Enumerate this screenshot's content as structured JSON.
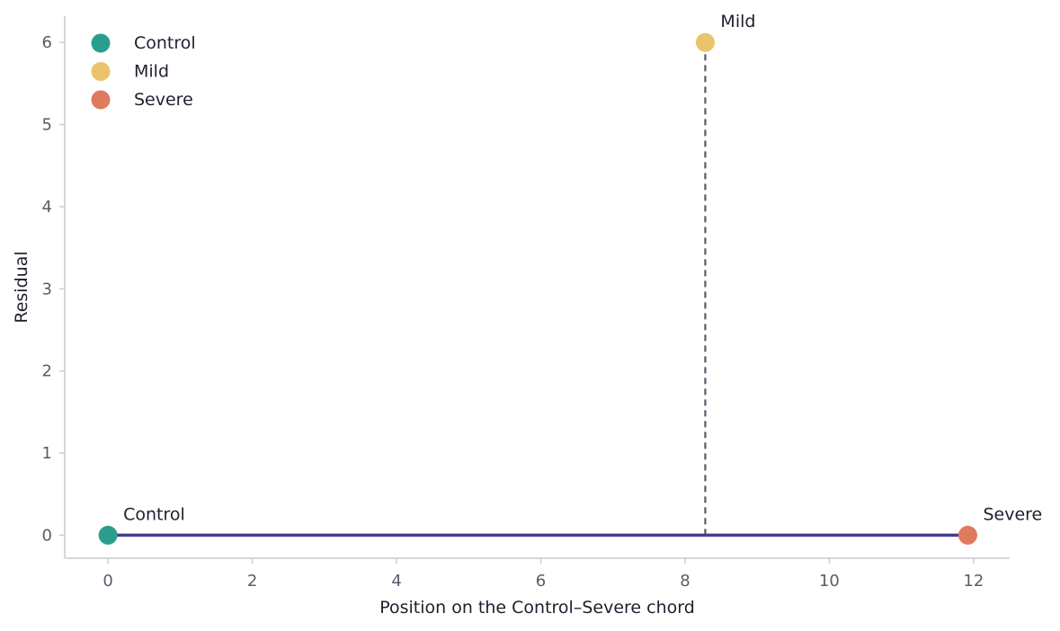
{
  "chart_data": {
    "type": "scatter",
    "title": "",
    "xlabel": "Position on the Control–Severe chord",
    "ylabel": "Residual",
    "xlim": [
      -0.6,
      12.5
    ],
    "ylim": [
      -0.28,
      6.32
    ],
    "x_ticks": [
      0,
      2,
      4,
      6,
      8,
      10,
      12
    ],
    "y_ticks": [
      0,
      1,
      2,
      3,
      4,
      5,
      6
    ],
    "grid": false,
    "legend": "top-left",
    "points": [
      {
        "label": "Control",
        "x": 0,
        "y": 0,
        "color": "#2a9d8f"
      },
      {
        "label": "Mild",
        "x": 8.28,
        "y": 6,
        "color": "#e9c46a"
      },
      {
        "label": "Severe",
        "x": 11.92,
        "y": 0,
        "color": "#e07a5f"
      }
    ],
    "chord": {
      "from": "Control",
      "to": "Severe",
      "color": "#473b8f"
    },
    "projection": {
      "x": 8.28,
      "y_from": 0,
      "y_to": 6,
      "color": "#5a5a6a",
      "style": "dashed"
    },
    "legend_entries": [
      {
        "label": "Control",
        "color": "#2a9d8f"
      },
      {
        "label": "Mild",
        "color": "#e9c46a"
      },
      {
        "label": "Severe",
        "color": "#e07a5f"
      }
    ]
  }
}
